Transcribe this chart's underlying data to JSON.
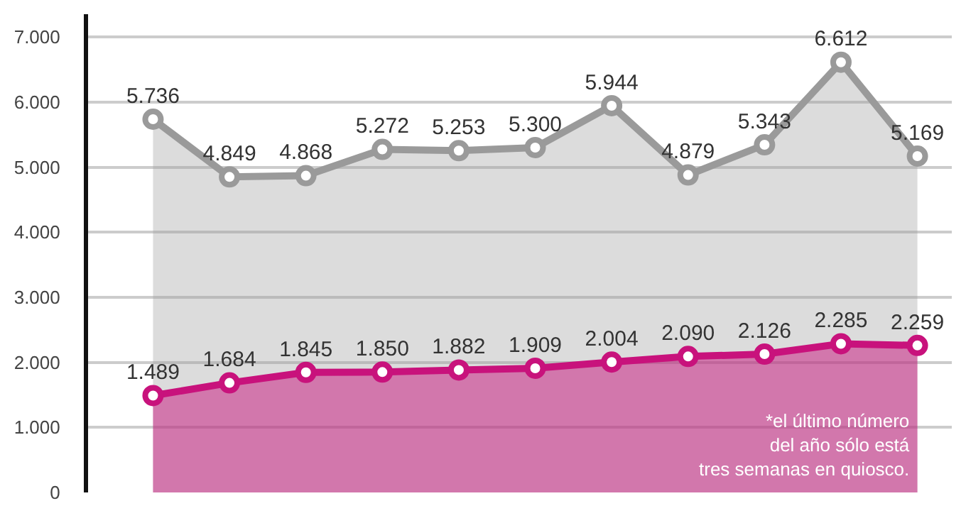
{
  "chart_data": {
    "type": "area",
    "categories": [
      null,
      null,
      null,
      null,
      null,
      null,
      null,
      null,
      null,
      null,
      null
    ],
    "series": [
      {
        "color": "#9a9a9a",
        "values": [
          5736,
          4849,
          4868,
          5272,
          5253,
          5300,
          5944,
          4879,
          5343,
          6612,
          5169
        ],
        "value_labels": [
          "5.736",
          "4.849",
          "4.868",
          "5.272",
          "5.253",
          "5.300",
          "5.944",
          "4.879",
          "5.343",
          "6.612",
          "5.169"
        ]
      },
      {
        "color": "#c8127c",
        "values": [
          1489,
          1684,
          1845,
          1850,
          1882,
          1909,
          2004,
          2090,
          2126,
          2285,
          2259
        ],
        "value_labels": [
          "1.489",
          "1.684",
          "1.845",
          "1.850",
          "1.882",
          "1.909",
          "2.004",
          "2.090",
          "2.126",
          "2.285",
          "2.259"
        ]
      }
    ],
    "ylim": [
      0,
      7350
    ],
    "yticks": [
      {
        "value": 0,
        "label": "0"
      },
      {
        "value": 1000,
        "label": "1.000"
      },
      {
        "value": 2000,
        "label": "2.000"
      },
      {
        "value": 3000,
        "label": "3.000"
      },
      {
        "value": 4000,
        "label": "4.000"
      },
      {
        "value": 5000,
        "label": "5.000"
      },
      {
        "value": 6000,
        "label": "6.000"
      },
      {
        "value": 7000,
        "label": "7.000"
      }
    ],
    "grid": true,
    "marker": "circle",
    "annotations": [
      "*el último número\ndel año sólo está\ntres semanas en quiosco."
    ]
  }
}
